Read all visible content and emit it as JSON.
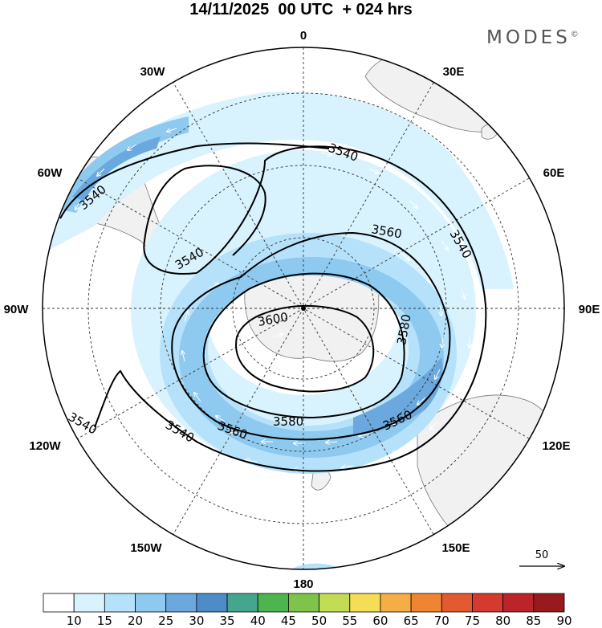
{
  "title": "14/11/2025  00 UTC  + 024 hrs",
  "brand": "MODES",
  "brand_mark": "©",
  "longitude_labels": {
    "lon_0": "0",
    "lon_30e": "30E",
    "lon_60e": "60E",
    "lon_90e": "90E",
    "lon_120e": "120E",
    "lon_150e": "150E",
    "lon_180": "180",
    "lon_150w": "150W",
    "lon_120w": "120W",
    "lon_90w": "90W",
    "lon_60w": "60W",
    "lon_30w": "30W"
  },
  "contour_labels": {
    "c1": "3540",
    "c2": "3540",
    "c3": "3540",
    "c4": "3540",
    "c5": "3540",
    "c6": "3540",
    "c7": "3560",
    "c8": "3560",
    "c9": "3560",
    "c10": "3580",
    "c11": "3580",
    "c12": "3600"
  },
  "vector_reference": {
    "value": "50"
  },
  "colorbar": {
    "levels": [
      "10",
      "15",
      "20",
      "25",
      "30",
      "35",
      "40",
      "45",
      "50",
      "55",
      "60",
      "65",
      "70",
      "75",
      "80",
      "85",
      "90"
    ],
    "colors": [
      "#ffffff",
      "#d8f2fe",
      "#b5e2fa",
      "#8ec9ef",
      "#6aa8dd",
      "#4d8cc6",
      "#45a68e",
      "#4eb44f",
      "#7ec44a",
      "#c3dc55",
      "#f5dd55",
      "#f5ad45",
      "#ef8433",
      "#e35a30",
      "#d43a2d",
      "#bb2429",
      "#971b1e"
    ]
  },
  "style": {
    "contour_color": "#000000",
    "land_color": "#f1f1f1",
    "grid_color": "#333333"
  }
}
